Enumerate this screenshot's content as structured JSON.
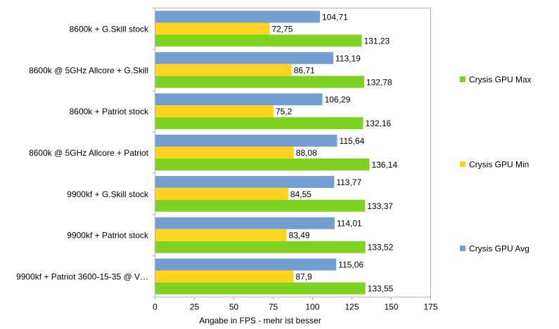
{
  "chart_data": {
    "type": "bar",
    "orientation": "horizontal",
    "categories": [
      "8600k + G.Skill stock",
      "8600k @ 5GHz Allcore + G.Skill",
      "8600k + Patriot stock",
      "8600k @ 5GHz Allcore + Patriot",
      "9900kf + G.Skill stock",
      "9900kf + Patriot stock",
      "9900kf + Patriot 3600-15-35 @ V…"
    ],
    "series": [
      {
        "name": "Crysis GPU Avg",
        "color": "#729fcf",
        "values": [
          104.71,
          113.19,
          106.29,
          115.64,
          113.77,
          114.01,
          115.06
        ],
        "labels": [
          "104,71",
          "113,19",
          "106,29",
          "115,64",
          "113,77",
          "114,01",
          "115,06"
        ]
      },
      {
        "name": "Crysis GPU Min",
        "color": "#ffd320",
        "values": [
          72.75,
          86.71,
          75.2,
          88.08,
          84.55,
          83.49,
          87.9
        ],
        "labels": [
          "72,75",
          "86,71",
          "75,2",
          "88,08",
          "84,55",
          "83,49",
          "87,9"
        ]
      },
      {
        "name": "Crysis GPU Max",
        "color": "#7fd320",
        "values": [
          131.23,
          132.78,
          132.16,
          136.14,
          133.37,
          133.52,
          133.55
        ],
        "labels": [
          "131,23",
          "132,78",
          "132,16",
          "136,14",
          "133,37",
          "133,52",
          "133,55"
        ]
      }
    ],
    "legend": [
      {
        "name": "Crysis GPU Max",
        "color": "#7fd320"
      },
      {
        "name": "Crysis GPU Min",
        "color": "#ffd320"
      },
      {
        "name": "Crysis GPU Avg",
        "color": "#729fcf"
      }
    ],
    "legend_position": "right",
    "xlabel": "Angabe in FPS - mehr ist besser",
    "ylabel": "",
    "xlim": [
      0,
      175
    ],
    "xticks": [
      0,
      25,
      50,
      75,
      100,
      125,
      150,
      175
    ],
    "grid": false
  }
}
